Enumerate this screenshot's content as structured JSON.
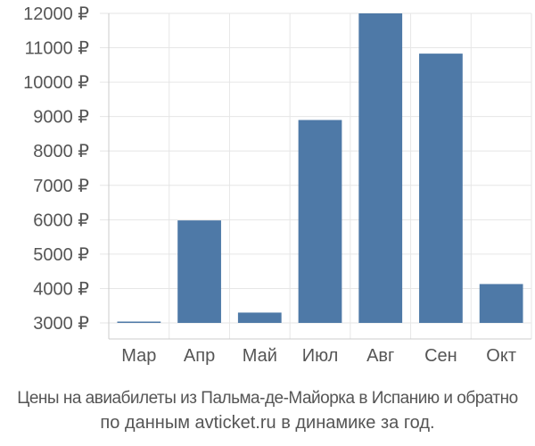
{
  "chart_data": {
    "type": "bar",
    "categories": [
      "Мар",
      "Апр",
      "Май",
      "Июл",
      "Авг",
      "Сен",
      "Окт"
    ],
    "values": [
      3020,
      5980,
      3300,
      8900,
      12000,
      10830,
      4130
    ],
    "ylim": [
      3000,
      12000
    ],
    "yticks": [
      3000,
      4000,
      5000,
      6000,
      7000,
      8000,
      9000,
      10000,
      11000,
      12000
    ],
    "ytick_labels": [
      "3000 ₽",
      "4000 ₽",
      "5000 ₽",
      "6000 ₽",
      "7000 ₽",
      "8000 ₽",
      "9000 ₽",
      "10000 ₽",
      "11000 ₽",
      "12000 ₽"
    ],
    "bar_color": "#4e79a7",
    "grid": true,
    "grid_color": "#e6e6e6",
    "axis_color": "#cccccc"
  },
  "caption": {
    "line1": "Цены на авиабилеты из Пальма-де-Майорка в Испанию и обратно",
    "line2": "по данным avticket.ru в динамике за год."
  }
}
